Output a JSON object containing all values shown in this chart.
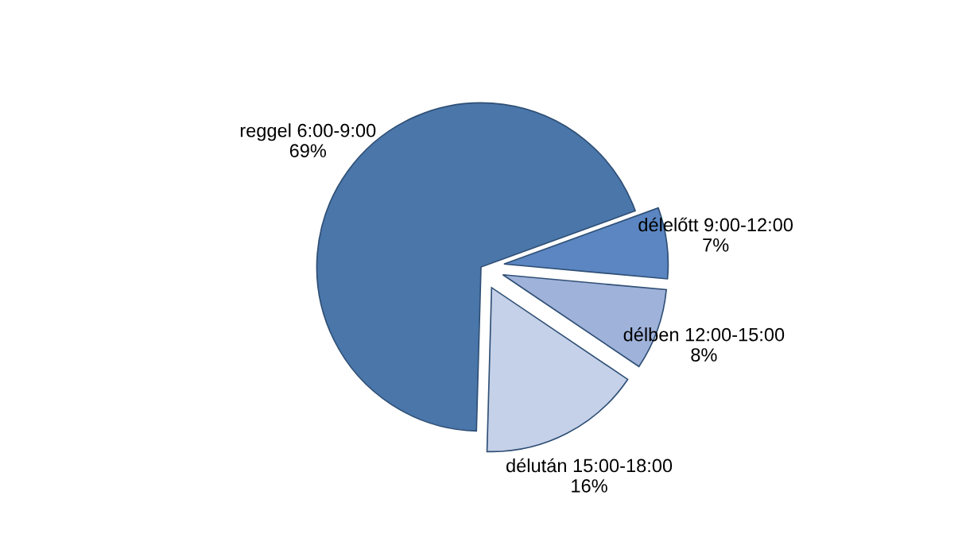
{
  "chart_data": {
    "type": "pie",
    "categories": [
      "reggel 6:00-9:00",
      "délelőtt 9:00-12:00",
      "délben 12:00-15:00",
      "délután 15:00-18:00"
    ],
    "values": [
      69,
      7,
      8,
      16
    ],
    "value_labels": [
      "69%",
      "7%",
      "8%",
      "16%"
    ],
    "colors": [
      "#4a76aa",
      "#5b86c2",
      "#9fb2da",
      "#c5d1e8"
    ],
    "legend": false
  }
}
